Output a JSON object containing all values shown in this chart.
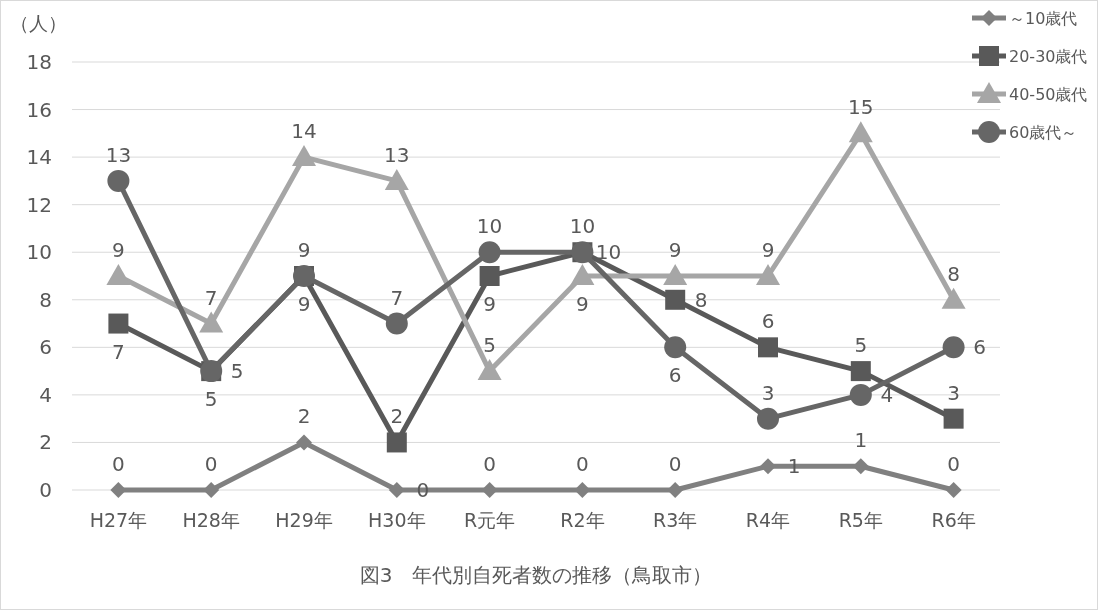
{
  "chart_data": {
    "type": "line",
    "title": "図3　年代別自死者数の推移（鳥取市）",
    "ylabel": "（人）",
    "categories": [
      "H27年",
      "H28年",
      "H29年",
      "H30年",
      "R元年",
      "R2年",
      "R3年",
      "R4年",
      "R5年",
      "R6年"
    ],
    "series": [
      {
        "name": "～10歳代",
        "color": "#808080",
        "marker": "diamond",
        "values": [
          0,
          0,
          2,
          0,
          0,
          0,
          0,
          1,
          1,
          0
        ]
      },
      {
        "name": "20-30歳代",
        "color": "#595959",
        "marker": "square",
        "values": [
          7,
          5,
          9,
          2,
          9,
          10,
          8,
          6,
          5,
          3
        ]
      },
      {
        "name": "40-50歳代",
        "color": "#a6a6a6",
        "marker": "triangle",
        "values": [
          9,
          7,
          14,
          13,
          5,
          9,
          9,
          9,
          15,
          8
        ]
      },
      {
        "name": "60歳代～",
        "color": "#666666",
        "marker": "circle",
        "values": [
          13,
          5,
          9,
          7,
          10,
          10,
          6,
          3,
          4,
          6
        ]
      }
    ],
    "ylim": [
      0,
      18
    ],
    "yticks": [
      0,
      2,
      4,
      6,
      8,
      10,
      12,
      14,
      16,
      18
    ],
    "grid": "y",
    "legend": "top right",
    "data_labels": true
  }
}
